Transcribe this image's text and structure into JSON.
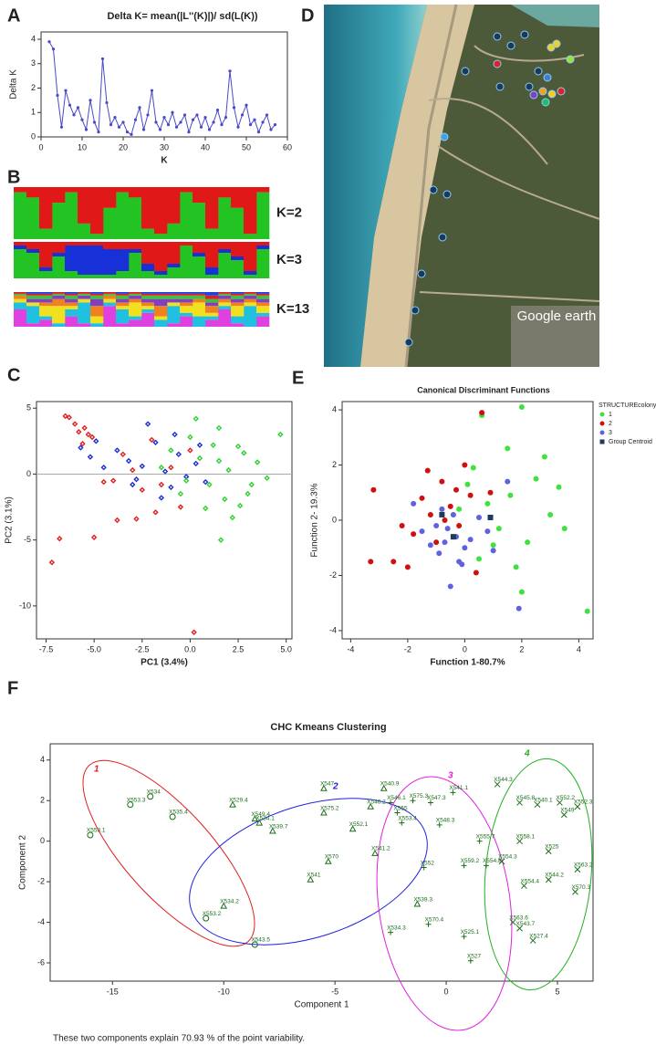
{
  "chart_data": [
    {
      "panel": "A",
      "type": "line",
      "title": "Delta K= mean(|L''(K)|)/ sd(L(K))",
      "xlabel": "K",
      "ylabel": "Delta K",
      "color": "#4a4ac8",
      "x": [
        2,
        3,
        4,
        5,
        6,
        7,
        8,
        9,
        10,
        11,
        12,
        13,
        14,
        15,
        16,
        17,
        18,
        19,
        20,
        21,
        22,
        23,
        24,
        25,
        26,
        27,
        28,
        29,
        30,
        31,
        32,
        33,
        34,
        35,
        36,
        37,
        38,
        39,
        40,
        41,
        42,
        43,
        44,
        45,
        46,
        47,
        48,
        49,
        50,
        51,
        52,
        53,
        54,
        55,
        56,
        57
      ],
      "values": [
        3.9,
        3.6,
        1.7,
        0.4,
        1.9,
        1.3,
        0.9,
        1.2,
        0.7,
        0.3,
        1.5,
        0.6,
        0.2,
        3.2,
        1.4,
        0.5,
        0.8,
        0.4,
        0.6,
        0.2,
        0.1,
        0.7,
        1.2,
        0.3,
        0.9,
        1.9,
        0.6,
        0.3,
        0.8,
        0.5,
        1.0,
        0.4,
        0.6,
        0.9,
        0.2,
        0.7,
        0.9,
        0.4,
        0.8,
        0.3,
        0.6,
        1.1,
        0.5,
        0.8,
        2.7,
        1.2,
        0.4,
        0.9,
        1.3,
        0.5,
        0.7,
        0.2,
        0.6,
        0.9,
        0.3,
        0.5
      ],
      "xlim": [
        0,
        60
      ],
      "xticks": [
        0,
        10,
        20,
        30,
        40,
        50,
        60
      ],
      "ylim": [
        0,
        4.3
      ],
      "yticks": [
        0,
        1,
        2,
        3,
        4
      ]
    },
    {
      "panel": "B",
      "type": "stacked_bar",
      "label": "K=2",
      "ylim": [
        0,
        1
      ],
      "series": [
        {
          "color": "#22c322",
          "values": [
            0.9,
            0.8,
            0.2,
            0.7,
            0.9,
            0.3,
            0.1,
            0.6,
            0.9,
            0.8,
            0.2,
            0.1,
            0.3,
            0.9,
            0.7,
            0.2,
            0.8,
            0.6,
            0.1,
            0.9
          ]
        },
        {
          "color": "#e01818",
          "values": [
            0.1,
            0.2,
            0.8,
            0.3,
            0.1,
            0.7,
            0.9,
            0.4,
            0.1,
            0.2,
            0.8,
            0.9,
            0.7,
            0.1,
            0.3,
            0.8,
            0.2,
            0.4,
            0.9,
            0.1
          ]
        }
      ]
    },
    {
      "type": "stacked_bar",
      "label": "K=3",
      "ylim": [
        0,
        1
      ],
      "series": [
        {
          "color": "#22c322",
          "values": [
            0.8,
            0.7,
            0.2,
            0.6,
            0.2,
            0.1,
            0.1,
            0.1,
            0.2,
            0.7,
            0.2,
            0.1,
            0.3,
            0.9,
            0.6,
            0.1,
            0.7,
            0.5,
            0.1,
            0.8
          ]
        },
        {
          "color": "#1830d8",
          "values": [
            0.1,
            0.1,
            0.1,
            0.1,
            0.7,
            0.8,
            0.8,
            0.7,
            0.6,
            0.1,
            0.2,
            0.1,
            0.1,
            0,
            0.1,
            0.2,
            0.1,
            0.1,
            0.1,
            0.1
          ]
        },
        {
          "color": "#e01818",
          "values": [
            0.1,
            0.2,
            0.7,
            0.3,
            0.1,
            0.1,
            0.1,
            0.2,
            0.2,
            0.2,
            0.6,
            0.8,
            0.6,
            0.1,
            0.3,
            0.7,
            0.2,
            0.4,
            0.8,
            0.1
          ]
        }
      ]
    },
    {
      "type": "stacked_bar",
      "label": "K=13",
      "ylim": [
        0,
        1
      ],
      "series": [
        {
          "color": "#e040e0",
          "values": [
            0.5,
            0.1,
            0.2,
            0,
            0.3,
            0.1,
            0,
            0.6,
            0.1,
            0.2,
            0.4,
            0,
            0.1,
            0.3,
            0,
            0.2,
            0.5,
            0.1,
            0,
            0.3
          ]
        },
        {
          "color": "#20c0e0",
          "values": [
            0.2,
            0.5,
            0.1,
            0.1,
            0.2,
            0.6,
            0.1,
            0.1,
            0.4,
            0.1,
            0.1,
            0.2,
            0.5,
            0.1,
            0.3,
            0.1,
            0.1,
            0.2,
            0.6,
            0.1
          ]
        },
        {
          "color": "#f0e020",
          "values": [
            0.1,
            0.1,
            0.3,
            0.5,
            0.1,
            0.1,
            0.2,
            0.1,
            0.1,
            0.4,
            0.1,
            0.1,
            0.1,
            0.2,
            0.4,
            0.1,
            0.1,
            0.3,
            0.1,
            0.2
          ]
        },
        {
          "color": "#f08020",
          "values": [
            0.1,
            0,
            0.1,
            0.2,
            0.1,
            0,
            0.3,
            0.1,
            0.1,
            0.1,
            0.1,
            0.3,
            0,
            0.1,
            0.1,
            0.2,
            0.1,
            0.1,
            0.1,
            0.1
          ]
        },
        {
          "color": "#8040c0",
          "values": [
            0,
            0.1,
            0.1,
            0.1,
            0.1,
            0.1,
            0.2,
            0,
            0.1,
            0.1,
            0.1,
            0.2,
            0.1,
            0.1,
            0,
            0.1,
            0.1,
            0.1,
            0.1,
            0.1
          ]
        },
        {
          "color": "#40c040",
          "values": [
            0.05,
            0.1,
            0.1,
            0.05,
            0.1,
            0.05,
            0.1,
            0.05,
            0.1,
            0.05,
            0.1,
            0.1,
            0.1,
            0.1,
            0.1,
            0.1,
            0.05,
            0.1,
            0.05,
            0.1
          ]
        },
        {
          "color": "#e02020",
          "values": [
            0.05,
            0.05,
            0.05,
            0.05,
            0.05,
            0.05,
            0.05,
            0.05,
            0.05,
            0.05,
            0.05,
            0.05,
            0.05,
            0.05,
            0.05,
            0.1,
            0.05,
            0.05,
            0.05,
            0.05
          ]
        },
        {
          "color": "#2040e0",
          "values": [
            0,
            0.05,
            0.05,
            0,
            0.05,
            0,
            0.05,
            0,
            0.05,
            0,
            0.05,
            0.05,
            0.05,
            0.05,
            0.05,
            0.1,
            0,
            0.05,
            0,
            0.05
          ]
        }
      ]
    },
    {
      "panel": "C",
      "type": "scatter",
      "xlabel": "PC1 (3.4%)",
      "ylabel": "PC2 (3.1%)",
      "hline": 0,
      "xlim": [
        -8,
        5.3
      ],
      "xticks": [
        -7.5,
        {
          "value": -5,
          "label": "-5.0"
        },
        -2.5,
        {
          "value": 0,
          "label": "0.0"
        },
        2.5,
        {
          "value": 5,
          "label": "5.0"
        }
      ],
      "ylim": [
        -12.5,
        5.5
      ],
      "yticks": [
        -10,
        -5,
        0,
        5
      ],
      "series": [
        {
          "color": "#e02020",
          "marker": "diamond",
          "x": [
            -6.3,
            -6.0,
            -5.8,
            -5.5,
            -5.3,
            -5.6,
            -5.1,
            -6.5,
            -4.5,
            -4.0,
            -3.5,
            -3.0,
            -2.5,
            -2.0,
            -1.5,
            -1.0,
            -0.5,
            0,
            -3.8,
            -5.0,
            -6.8,
            -7.2,
            0.2,
            -1.8,
            -2.8
          ],
          "values": [
            4.3,
            3.8,
            3.2,
            3.5,
            3.0,
            2.3,
            2.8,
            4.4,
            -0.6,
            -0.5,
            1.5,
            0.3,
            -1.2,
            2.6,
            -0.8,
            0.5,
            -2.5,
            1.8,
            -3.5,
            -4.8,
            -4.9,
            -6.7,
            -12.0,
            -2.9,
            -3.4
          ]
        },
        {
          "color": "#2030d0",
          "marker": "diamond",
          "x": [
            -5.7,
            -5.2,
            -4.9,
            -4.5,
            -3.8,
            -3.2,
            -2.8,
            -2.2,
            -1.8,
            -1.3,
            -1.0,
            -0.6,
            -0.2,
            0.3,
            0.8,
            -1.5,
            -2.5,
            -0.8,
            -3.0,
            0.5
          ],
          "values": [
            2.0,
            1.3,
            2.5,
            0.5,
            1.8,
            1.0,
            -0.4,
            3.8,
            2.4,
            0.2,
            -1.0,
            1.5,
            -0.2,
            0.8,
            -0.6,
            -1.8,
            0.6,
            3.0,
            -0.8,
            2.2
          ]
        },
        {
          "color": "#30d030",
          "marker": "diamond",
          "x": [
            -1.5,
            -0.5,
            0,
            0.5,
            1.0,
            1.5,
            2.0,
            2.5,
            3.0,
            3.5,
            4.0,
            4.7,
            0.8,
            1.8,
            2.8,
            -0.2,
            1.2,
            2.2,
            3.2,
            0.3,
            1.6,
            2.6,
            -1.0,
            1.5
          ],
          "values": [
            0.5,
            -1.5,
            2.8,
            1.2,
            -0.8,
            3.5,
            0.3,
            2.1,
            -1.5,
            0.9,
            -0.3,
            3.0,
            -2.6,
            -1.9,
            1.6,
            -0.5,
            2.2,
            -3.3,
            -0.8,
            4.2,
            -5.0,
            -2.4,
            1.8,
            1.0
          ]
        }
      ]
    },
    {
      "panel": "E",
      "type": "scatter",
      "title": "Canonical Discriminant Functions",
      "xlabel": "Function 1-80.7%",
      "ylabel": "Function 2- 19.3%",
      "legend_title": "STRUCTUREcolony",
      "xlim": [
        -4.3,
        4.5
      ],
      "xticks": [
        -4,
        -2,
        0,
        2,
        4
      ],
      "ylim": [
        -4.3,
        4.3
      ],
      "yticks": [
        -4,
        -2,
        0,
        2,
        4
      ],
      "series": [
        {
          "name": "1",
          "color": "#40e040",
          "marker": "circle",
          "x": [
            0.6,
            1.5,
            2.0,
            2.5,
            3.0,
            3.5,
            1.0,
            0.3,
            1.8,
            2.8,
            0.8,
            1.2,
            2.2,
            -0.2,
            0.5,
            1.6,
            3.3,
            4.3,
            2.0,
            0.1
          ],
          "values": [
            3.8,
            2.6,
            4.1,
            1.5,
            0.2,
            -0.3,
            -0.9,
            1.9,
            -1.7,
            2.3,
            0.6,
            -0.3,
            -0.8,
            0.4,
            -1.4,
            0.9,
            1.2,
            -3.3,
            -2.6,
            1.3
          ]
        },
        {
          "name": "2",
          "color": "#d01010",
          "marker": "circle",
          "x": [
            -3.2,
            -3.3,
            -2.0,
            -1.5,
            -1.2,
            -0.8,
            -0.5,
            -0.2,
            0.2,
            0.6,
            -1.8,
            -1.0,
            -0.3,
            0.4,
            -2.5,
            -0.7,
            -1.3,
            0.9,
            -2.2,
            0.0
          ],
          "values": [
            1.1,
            -1.5,
            -1.7,
            0.8,
            0.2,
            1.4,
            0.5,
            -0.2,
            0.9,
            3.9,
            -0.5,
            -0.8,
            1.1,
            -1.9,
            -1.5,
            0.0,
            1.8,
            1.0,
            -0.2,
            2.0
          ]
        },
        {
          "name": "3",
          "color": "#6060e0",
          "marker": "circle",
          "x": [
            -1.5,
            -1.0,
            -0.5,
            -0.3,
            0.0,
            0.5,
            -0.8,
            -0.2,
            1.0,
            -1.8,
            1.9,
            -0.6,
            0.2,
            -1.2,
            1.5,
            -0.9,
            -0.4,
            0.8,
            -0.1,
            -0.7
          ],
          "values": [
            -0.4,
            -0.2,
            -2.4,
            -0.6,
            -1.0,
            0.1,
            0.4,
            -1.5,
            -1.1,
            0.6,
            -3.2,
            -0.3,
            -0.7,
            -0.9,
            1.4,
            -1.2,
            0.2,
            -0.4,
            -1.6,
            -0.8
          ]
        },
        {
          "name": "Group Centroid",
          "color": "#1f3a5f",
          "marker": "square",
          "x": [
            0.9,
            -0.8,
            -0.4
          ],
          "values": [
            0.1,
            0.2,
            -0.6
          ]
        }
      ]
    },
    {
      "panel": "F",
      "type": "scatter",
      "title": "CHC Kmeans Clustering",
      "xlabel": "Component 1",
      "ylabel": "Component 2",
      "note": "These two components explain 70.93 % of the point variability.",
      "xlim": [
        -17.8,
        6.6
      ],
      "xticks": [
        -15,
        -10,
        -5,
        0,
        5
      ],
      "ylim": [
        -6.9,
        4.8
      ],
      "yticks": [
        -6,
        -4,
        -2,
        0,
        2,
        4
      ],
      "series": [
        {
          "name": "1",
          "cluster_color": "#e02020",
          "color": "#1a6e1a",
          "marker": "open-circle",
          "labels": [
            "X553.3",
            "X534",
            "X535.4",
            "X553.1",
            "X553.2",
            "X543.5"
          ],
          "x": [
            -14.2,
            -13.3,
            -12.3,
            -16,
            -10.8,
            -8.6
          ],
          "values": [
            1.8,
            2.2,
            1.2,
            0.3,
            -3.8,
            -5.1
          ]
        },
        {
          "name": "2",
          "cluster_color": "#2020e0",
          "color": "#1a6e1a",
          "marker": "open-triangle",
          "labels": [
            "X547",
            "X529.4",
            "X549.4",
            "X534.1",
            "X539.7",
            "X575.2",
            "X546.2",
            "X540.9",
            "X552.1",
            "X541.2",
            "X570",
            "X541",
            "X534.2",
            "X539.3"
          ],
          "x": [
            -5.5,
            -9.6,
            -8.6,
            -8.4,
            -7.8,
            -5.5,
            -3.4,
            -2.8,
            -4.2,
            -3.2,
            -5.3,
            -6.1,
            -10,
            -1.3
          ],
          "values": [
            2.6,
            1.8,
            1.1,
            0.9,
            0.5,
            1.4,
            1.7,
            2.6,
            0.6,
            -0.6,
            -1.0,
            -1.9,
            -3.2,
            -3.1
          ]
        },
        {
          "name": "3",
          "cluster_color": "#e020e0",
          "color": "#1a6e1a",
          "marker": "plus",
          "labels": [
            "X541.1",
            "X575.3",
            "X547.3",
            "X546.1",
            "X555",
            "X553.4",
            "X559.2",
            "X552",
            "X554.8",
            "X570.4",
            "X534.3",
            "X525.1",
            "X527",
            "X555.7",
            "X548.3"
          ],
          "x": [
            0.3,
            -1.5,
            -0.7,
            -2.5,
            -2.2,
            -2,
            0.8,
            -1,
            1.8,
            -0.8,
            -2.5,
            0.8,
            1.1,
            1.5,
            -0.3
          ],
          "values": [
            2.4,
            2,
            1.9,
            1.9,
            1.4,
            0.9,
            -1.2,
            -1.3,
            -1.2,
            -4.1,
            -4.5,
            -4.7,
            -5.9,
            0,
            0.8
          ]
        },
        {
          "name": "4",
          "cluster_color": "#20b020",
          "color": "#1a6e1a",
          "marker": "x",
          "labels": [
            "X544.3",
            "X545.8",
            "X540.1",
            "X552.2",
            "X552.3",
            "X549",
            "X544.2",
            "X554.4",
            "X563.2",
            "X570.3",
            "X527.4",
            "X563.6",
            "X543.7",
            "X525",
            "X554.3",
            "X558.1"
          ],
          "x": [
            2.3,
            3.3,
            4.1,
            5.1,
            5.9,
            5.3,
            4.6,
            3.5,
            5.9,
            5.8,
            3.9,
            3.0,
            3.3,
            4.6,
            2.5,
            3.3
          ],
          "values": [
            2.8,
            1.9,
            1.8,
            1.9,
            1.7,
            1.3,
            -1.9,
            -2.2,
            -1.4,
            -2.5,
            -4.9,
            -4.0,
            -4.3,
            -0.5,
            -1.0,
            0.0
          ]
        }
      ]
    }
  ],
  "map": {
    "panel": "D",
    "attribution": "Google earth"
  }
}
